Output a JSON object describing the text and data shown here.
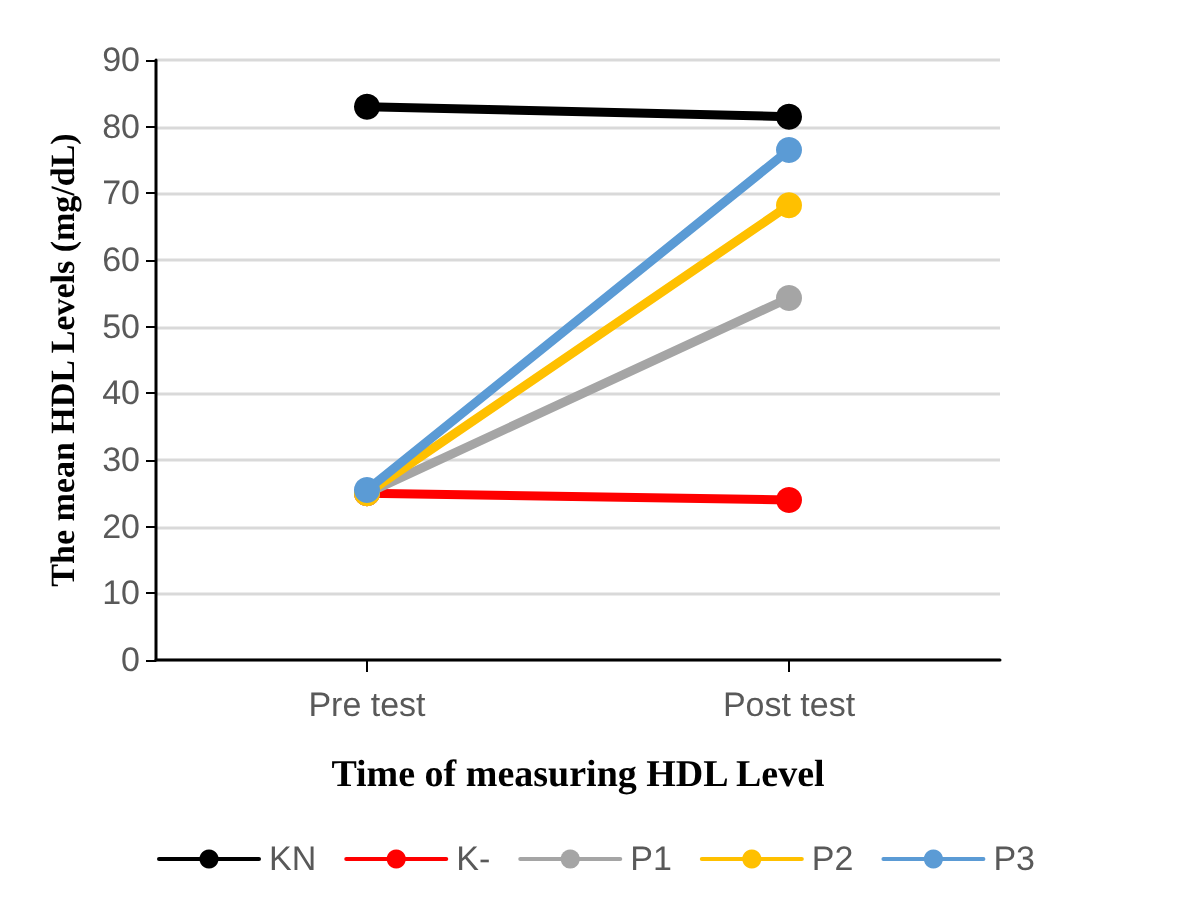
{
  "chart_data": {
    "type": "line",
    "xlabel": "Time of measuring HDL Level",
    "ylabel": "The mean HDL Levels (mg/dL)",
    "categories": [
      "Pre test",
      "Post test"
    ],
    "series": [
      {
        "name": "KN",
        "color": "#000000",
        "values": [
          83,
          81.5
        ]
      },
      {
        "name": "K-",
        "color": "#ff0000",
        "values": [
          25,
          24
        ]
      },
      {
        "name": "P1",
        "color": "#a5a5a5",
        "values": [
          25,
          54.3
        ]
      },
      {
        "name": "P2",
        "color": "#ffc000",
        "values": [
          25,
          68.2
        ]
      },
      {
        "name": "P3",
        "color": "#5b9bd5",
        "values": [
          25.5,
          76.5
        ]
      }
    ],
    "ylim": [
      0,
      90
    ],
    "yticks": [
      0,
      10,
      20,
      30,
      40,
      50,
      60,
      70,
      80,
      90
    ],
    "grid": "y",
    "legend": "bottom",
    "marker": "circle",
    "line_style": "solid"
  }
}
